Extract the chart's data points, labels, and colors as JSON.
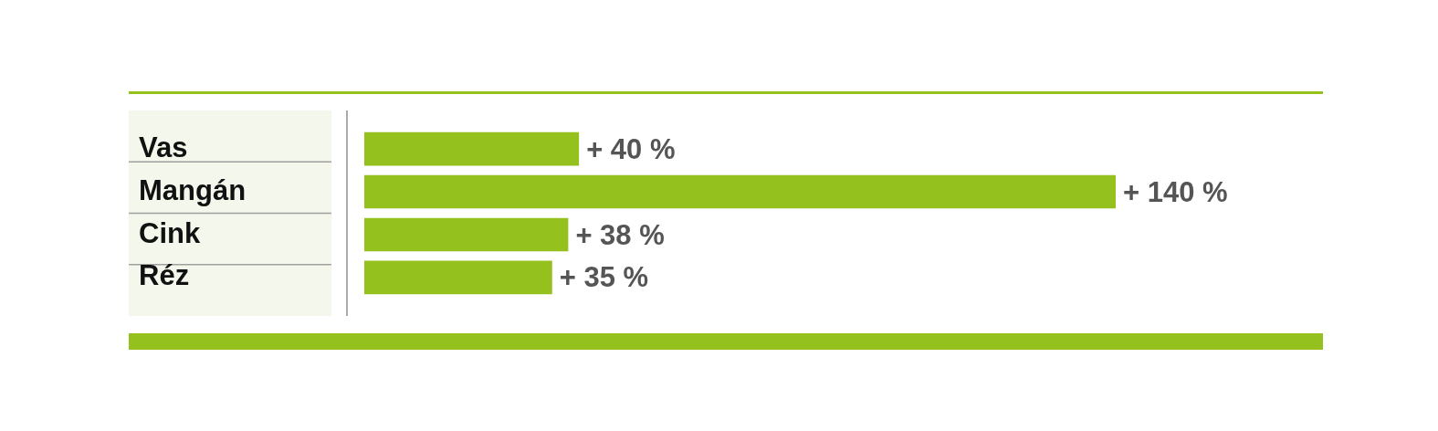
{
  "chart_data": {
    "type": "bar",
    "orientation": "horizontal",
    "categories": [
      "Vas",
      "Mangán",
      "Cink",
      "Réz"
    ],
    "values": [
      40,
      140,
      38,
      35
    ],
    "color": "#95c11f",
    "value_labels": [
      "+ 40 %",
      "+ 140 %",
      "+ 38 %",
      "+ 35 %"
    ]
  }
}
